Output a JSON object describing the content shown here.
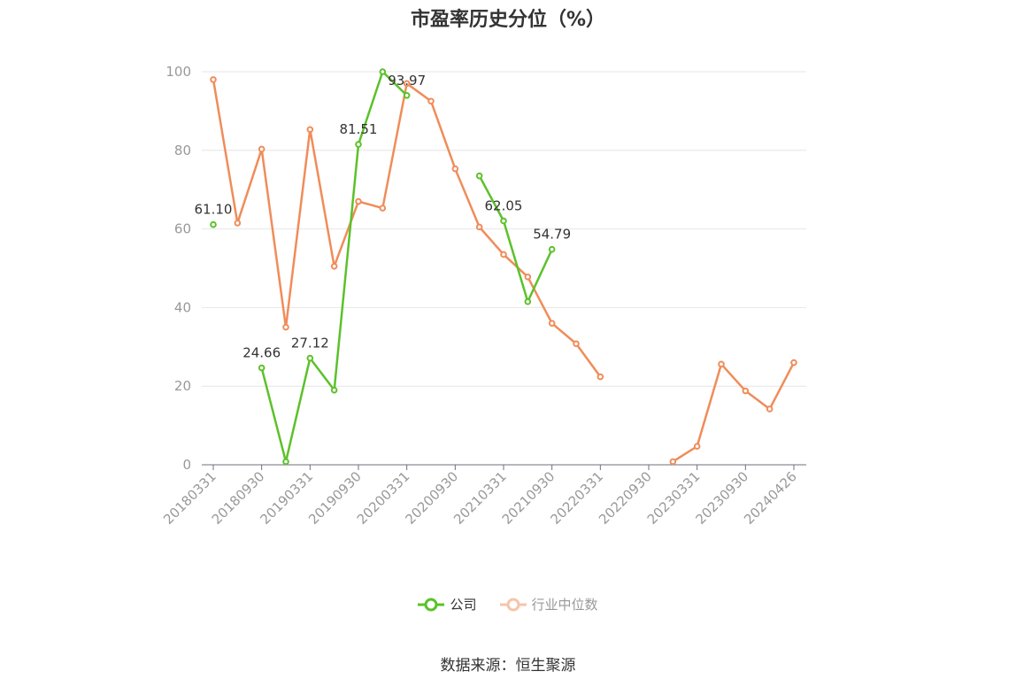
{
  "title": "市盈率历史分位（%）",
  "source": "数据来源：恒生聚源",
  "chart_data": {
    "type": "line",
    "title": "市盈率历史分位（%）",
    "xlabel": "",
    "ylabel": "",
    "ylim": [
      0,
      100
    ],
    "yticks": [
      0,
      20,
      40,
      60,
      80,
      100
    ],
    "grid": true,
    "legend_position": "bottom-center",
    "x": [
      "20180331",
      "20180630",
      "20180930",
      "20181231",
      "20190331",
      "20190630",
      "20190930",
      "20191231",
      "20200331",
      "20200630",
      "20200930",
      "20201231",
      "20210331",
      "20210630",
      "20210930",
      "20211231",
      "20220331",
      "20220630",
      "20220930",
      "20221231",
      "20230331",
      "20230630",
      "20230930",
      "20231231",
      "20240426"
    ],
    "x_tick_labels": [
      "20180331",
      "20180930",
      "20190331",
      "20190930",
      "20200331",
      "20200930",
      "20210331",
      "20210930",
      "20220331",
      "20220930",
      "20230331",
      "20230930",
      "20240426"
    ],
    "x_tick_indices": [
      0,
      2,
      4,
      6,
      8,
      10,
      12,
      14,
      16,
      18,
      20,
      22,
      24
    ],
    "series": [
      {
        "name": "公司",
        "color": "#5cc12a",
        "values": [
          61.1,
          null,
          24.66,
          0.8,
          27.12,
          19.0,
          81.51,
          100.0,
          93.97,
          null,
          null,
          73.5,
          62.05,
          41.5,
          54.79,
          null,
          null,
          null,
          null,
          null,
          null,
          null,
          null,
          null,
          null
        ],
        "labeled_indices": [
          0,
          2,
          4,
          6,
          8,
          12,
          14
        ],
        "data_labels": [
          "61.10",
          "24.66",
          "27.12",
          "81.51",
          "93.97",
          "62.05",
          "54.79"
        ]
      },
      {
        "name": "行业中位数",
        "color": "#f08c5a",
        "values": [
          98.0,
          61.5,
          80.3,
          35.0,
          85.3,
          50.5,
          67.0,
          65.3,
          97.0,
          92.5,
          75.3,
          60.5,
          53.5,
          47.8,
          36.0,
          30.8,
          22.4,
          null,
          null,
          0.8,
          4.7,
          25.6,
          18.8,
          14.2,
          26.0
        ]
      }
    ]
  },
  "legend": {
    "items": [
      {
        "label": "公司",
        "color": "#5cc12a"
      },
      {
        "label": "行业中位数",
        "color": "#f08c5a"
      }
    ]
  }
}
